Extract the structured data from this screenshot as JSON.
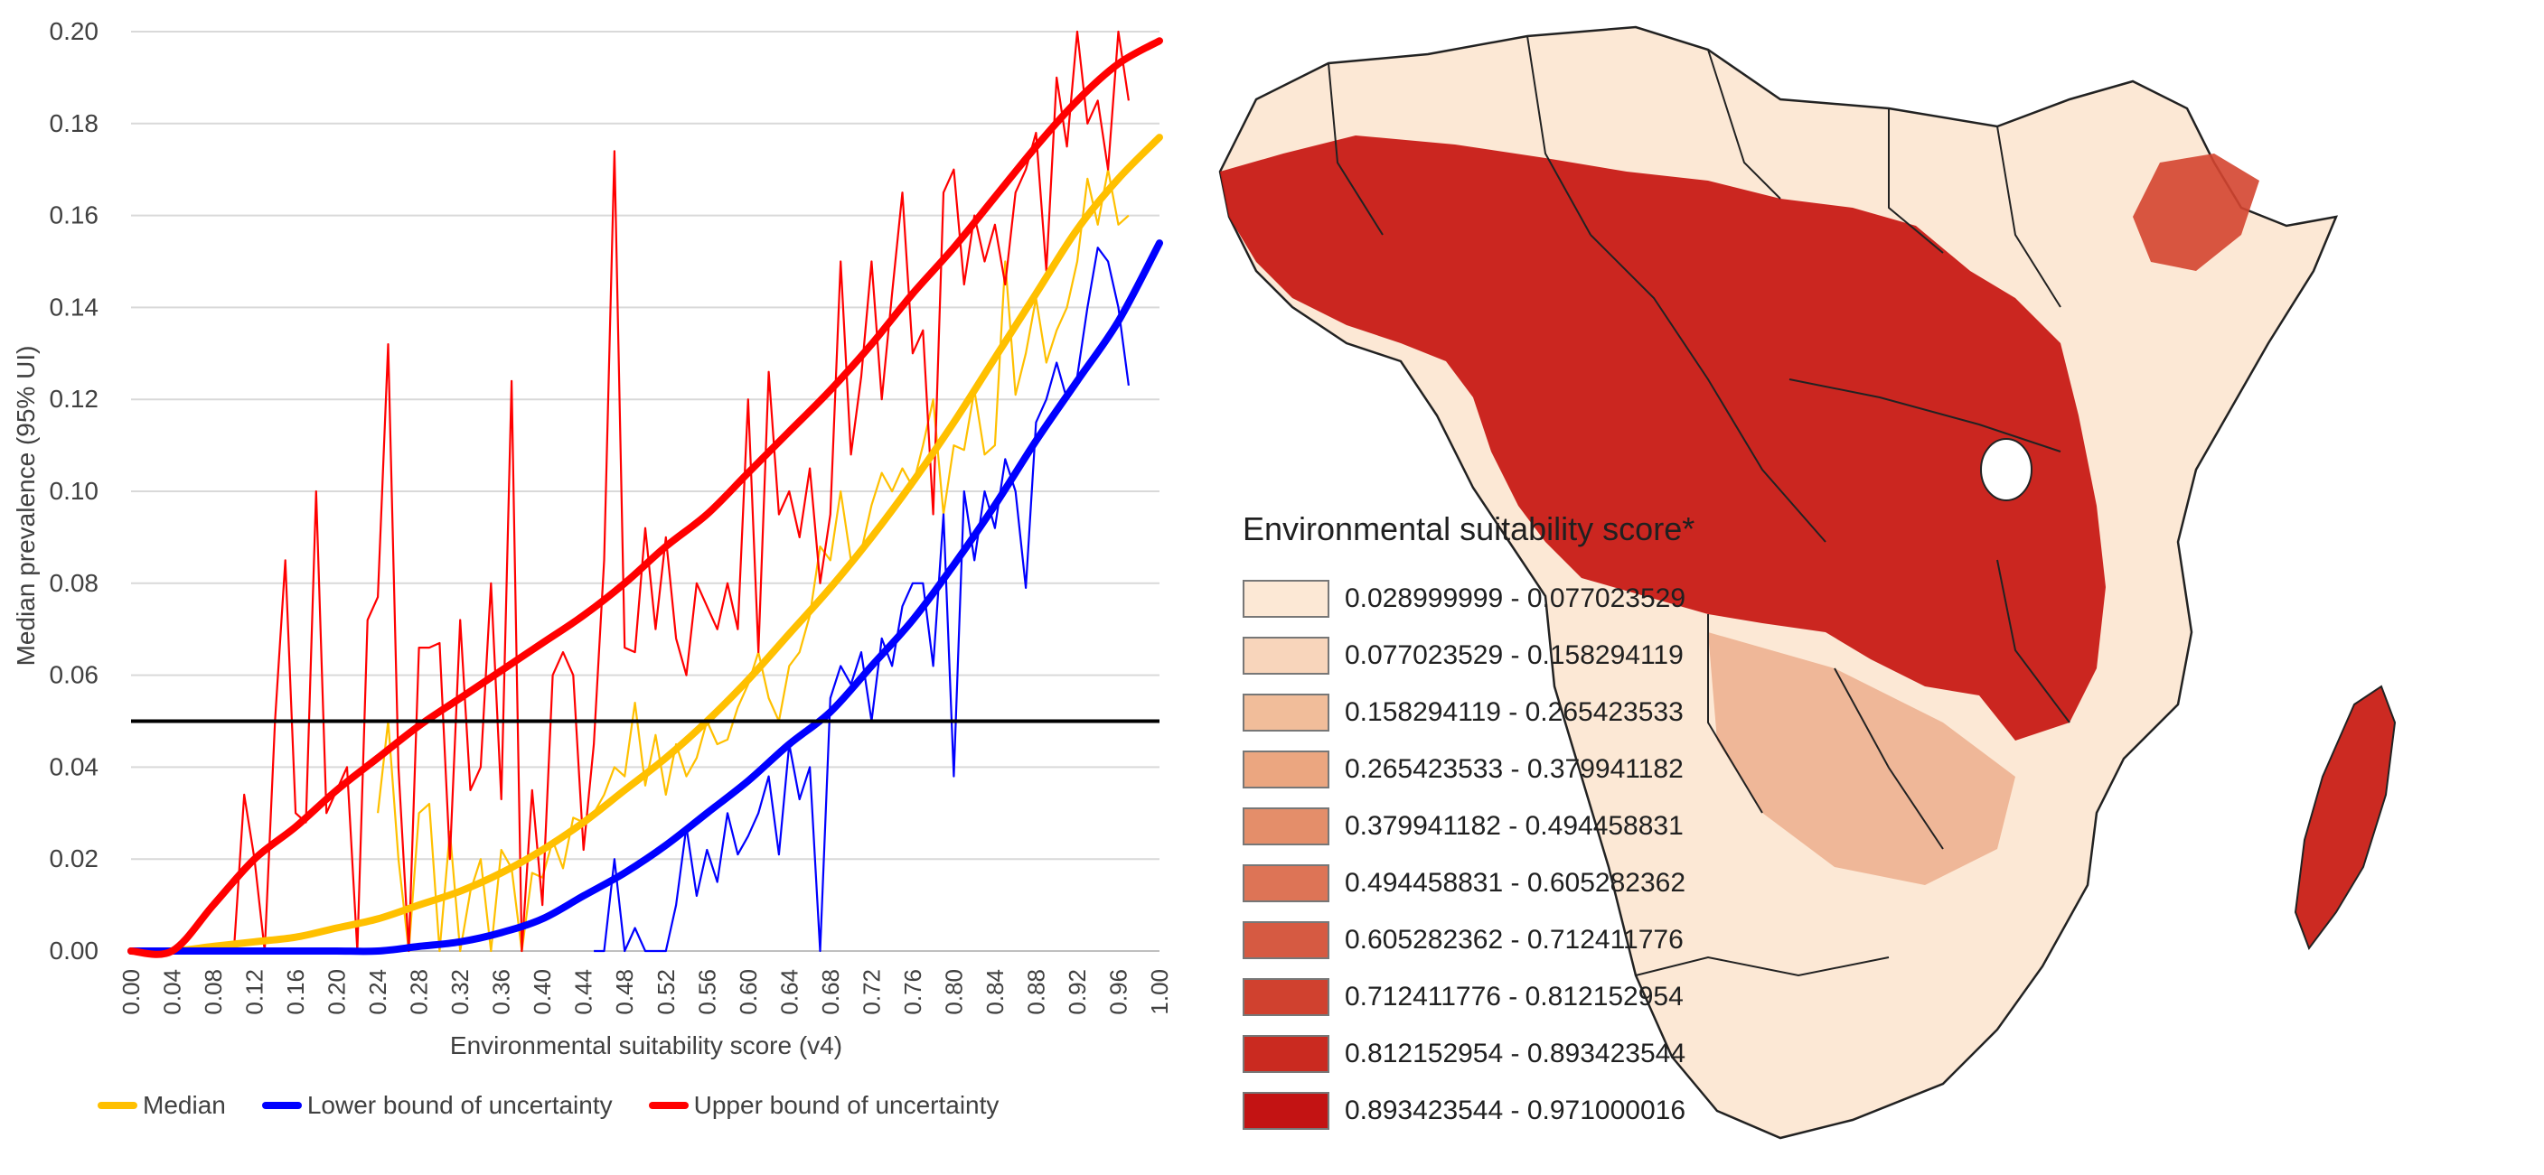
{
  "chart_data": {
    "type": "line",
    "xlabel": "Environmental suitability score (v4)",
    "ylabel": "Median prevalence (95% UI)",
    "xlim": [
      0,
      1
    ],
    "ylim": [
      0,
      0.2
    ],
    "x_ticks": [
      "0.00",
      "0.04",
      "0.08",
      "0.12",
      "0.16",
      "0.20",
      "0.24",
      "0.28",
      "0.32",
      "0.36",
      "0.40",
      "0.44",
      "0.48",
      "0.52",
      "0.56",
      "0.60",
      "0.64",
      "0.68",
      "0.72",
      "0.76",
      "0.80",
      "0.84",
      "0.88",
      "0.92",
      "0.96",
      "1.00"
    ],
    "y_ticks": [
      "0.00",
      "0.02",
      "0.04",
      "0.06",
      "0.08",
      "0.10",
      "0.12",
      "0.14",
      "0.16",
      "0.18",
      "0.20"
    ],
    "threshold": 0.05,
    "x": [
      0.0,
      0.04,
      0.08,
      0.12,
      0.16,
      0.2,
      0.24,
      0.28,
      0.32,
      0.36,
      0.4,
      0.44,
      0.48,
      0.52,
      0.56,
      0.6,
      0.64,
      0.68,
      0.72,
      0.76,
      0.8,
      0.84,
      0.88,
      0.92,
      0.96,
      1.0
    ],
    "series": [
      {
        "name": "Median",
        "color": "#FFC000",
        "smooth": true,
        "values": [
          0,
          0,
          0.001,
          0.002,
          0.003,
          0.005,
          0.007,
          0.01,
          0.013,
          0.017,
          0.022,
          0.028,
          0.035,
          0.042,
          0.05,
          0.059,
          0.069,
          0.079,
          0.09,
          0.102,
          0.115,
          0.129,
          0.143,
          0.157,
          0.168,
          0.177
        ]
      },
      {
        "name": "Lower bound of uncertainty",
        "color": "#0000FF",
        "smooth": true,
        "values": [
          0,
          0,
          0,
          0,
          0,
          0,
          0,
          0.001,
          0.002,
          0.004,
          0.007,
          0.012,
          0.017,
          0.023,
          0.03,
          0.037,
          0.045,
          0.052,
          0.062,
          0.072,
          0.084,
          0.097,
          0.111,
          0.124,
          0.137,
          0.154
        ]
      },
      {
        "name": "Upper bound of uncertainty",
        "color": "#FF0000",
        "smooth": true,
        "values": [
          0,
          0,
          0.01,
          0.02,
          0.027,
          0.035,
          0.042,
          0.049,
          0.055,
          0.061,
          0.067,
          0.073,
          0.08,
          0.088,
          0.095,
          0.104,
          0.113,
          0.122,
          0.132,
          0.143,
          0.153,
          0.164,
          0.175,
          0.185,
          0.193,
          0.198
        ]
      }
    ],
    "raw_series": [
      {
        "name": "Median (raw)",
        "color": "#FFC000",
        "x": [
          0.24,
          0.25,
          0.26,
          0.27,
          0.28,
          0.29,
          0.3,
          0.31,
          0.32,
          0.33,
          0.34,
          0.35,
          0.36,
          0.37,
          0.38,
          0.39,
          0.4,
          0.41,
          0.42,
          0.43,
          0.44,
          0.45,
          0.46,
          0.47,
          0.48,
          0.49,
          0.5,
          0.51,
          0.52,
          0.53,
          0.54,
          0.55,
          0.56,
          0.57,
          0.58,
          0.59,
          0.6,
          0.61,
          0.62,
          0.63,
          0.64,
          0.65,
          0.66,
          0.67,
          0.68,
          0.69,
          0.7,
          0.71,
          0.72,
          0.73,
          0.74,
          0.75,
          0.76,
          0.77,
          0.78,
          0.79,
          0.8,
          0.81,
          0.82,
          0.83,
          0.84,
          0.85,
          0.86,
          0.87,
          0.88,
          0.89,
          0.9,
          0.91,
          0.92,
          0.93,
          0.94,
          0.95,
          0.96,
          0.97
        ],
        "values": [
          0.03,
          0.05,
          0.02,
          0,
          0.03,
          0.032,
          0,
          0.026,
          0,
          0.013,
          0.02,
          0,
          0.022,
          0.018,
          0,
          0.017,
          0.016,
          0.024,
          0.018,
          0.029,
          0.028,
          0.03,
          0.034,
          0.04,
          0.038,
          0.054,
          0.036,
          0.047,
          0.034,
          0.045,
          0.038,
          0.042,
          0.05,
          0.045,
          0.046,
          0.053,
          0.058,
          0.065,
          0.055,
          0.05,
          0.062,
          0.065,
          0.073,
          0.088,
          0.085,
          0.1,
          0.085,
          0.087,
          0.097,
          0.104,
          0.1,
          0.105,
          0.101,
          0.11,
          0.12,
          0.095,
          0.11,
          0.109,
          0.122,
          0.108,
          0.11,
          0.15,
          0.121,
          0.13,
          0.142,
          0.128,
          0.135,
          0.14,
          0.15,
          0.168,
          0.158,
          0.17,
          0.158,
          0.16
        ]
      },
      {
        "name": "Lower bound (raw)",
        "color": "#0000FF",
        "x": [
          0.45,
          0.46,
          0.47,
          0.48,
          0.49,
          0.5,
          0.51,
          0.52,
          0.53,
          0.54,
          0.55,
          0.56,
          0.57,
          0.58,
          0.59,
          0.6,
          0.61,
          0.62,
          0.63,
          0.64,
          0.65,
          0.66,
          0.67,
          0.68,
          0.69,
          0.7,
          0.71,
          0.72,
          0.73,
          0.74,
          0.75,
          0.76,
          0.77,
          0.78,
          0.79,
          0.8,
          0.81,
          0.82,
          0.83,
          0.84,
          0.85,
          0.86,
          0.87,
          0.88,
          0.89,
          0.9,
          0.91,
          0.92,
          0.93,
          0.94,
          0.95,
          0.96,
          0.97
        ],
        "values": [
          0,
          0,
          0.02,
          0,
          0.005,
          0,
          0,
          0,
          0.01,
          0.027,
          0.012,
          0.022,
          0.015,
          0.03,
          0.021,
          0.025,
          0.03,
          0.038,
          0.021,
          0.045,
          0.033,
          0.04,
          0,
          0.055,
          0.062,
          0.058,
          0.065,
          0.05,
          0.068,
          0.062,
          0.075,
          0.08,
          0.08,
          0.062,
          0.095,
          0.038,
          0.1,
          0.085,
          0.1,
          0.092,
          0.107,
          0.1,
          0.079,
          0.115,
          0.12,
          0.128,
          0.12,
          0.125,
          0.14,
          0.153,
          0.15,
          0.14,
          0.123
        ]
      },
      {
        "name": "Upper bound (raw)",
        "color": "#FF0000",
        "x": [
          0.1,
          0.11,
          0.12,
          0.13,
          0.14,
          0.15,
          0.16,
          0.17,
          0.18,
          0.19,
          0.2,
          0.21,
          0.22,
          0.23,
          0.24,
          0.25,
          0.26,
          0.27,
          0.28,
          0.29,
          0.3,
          0.31,
          0.32,
          0.33,
          0.34,
          0.35,
          0.36,
          0.37,
          0.38,
          0.39,
          0.4,
          0.41,
          0.42,
          0.43,
          0.44,
          0.45,
          0.46,
          0.47,
          0.48,
          0.49,
          0.5,
          0.51,
          0.52,
          0.53,
          0.54,
          0.55,
          0.56,
          0.57,
          0.58,
          0.59,
          0.6,
          0.61,
          0.62,
          0.63,
          0.64,
          0.65,
          0.66,
          0.67,
          0.68,
          0.69,
          0.7,
          0.71,
          0.72,
          0.73,
          0.74,
          0.75,
          0.76,
          0.77,
          0.78,
          0.79,
          0.8,
          0.81,
          0.82,
          0.83,
          0.84,
          0.85,
          0.86,
          0.87,
          0.88,
          0.89,
          0.9,
          0.91,
          0.92,
          0.93,
          0.94,
          0.95,
          0.96,
          0.97
        ],
        "values": [
          0,
          0.034,
          0.02,
          0,
          0.05,
          0.085,
          0.03,
          0.028,
          0.1,
          0.03,
          0.035,
          0.04,
          0,
          0.072,
          0.077,
          0.132,
          0.04,
          0,
          0.066,
          0.066,
          0.067,
          0.02,
          0.072,
          0.035,
          0.04,
          0.08,
          0.033,
          0.124,
          0,
          0.035,
          0.01,
          0.06,
          0.065,
          0.06,
          0.022,
          0.045,
          0.085,
          0.174,
          0.066,
          0.065,
          0.092,
          0.07,
          0.09,
          0.068,
          0.06,
          0.08,
          0.075,
          0.07,
          0.08,
          0.07,
          0.12,
          0.065,
          0.126,
          0.095,
          0.1,
          0.09,
          0.105,
          0.08,
          0.095,
          0.15,
          0.108,
          0.125,
          0.15,
          0.12,
          0.143,
          0.165,
          0.13,
          0.135,
          0.095,
          0.165,
          0.17,
          0.145,
          0.16,
          0.15,
          0.158,
          0.145,
          0.165,
          0.17,
          0.178,
          0.148,
          0.19,
          0.175,
          0.2,
          0.18,
          0.185,
          0.17,
          0.2,
          0.185
        ]
      }
    ],
    "legend": [
      {
        "label": "Median",
        "color": "#FFC000"
      },
      {
        "label": "Lower bound of uncertainty",
        "color": "#0000FF"
      },
      {
        "label": "Upper bound of uncertainty",
        "color": "#FF0000"
      }
    ]
  },
  "map": {
    "legend_title": "Environmental suitability score*",
    "legend": [
      {
        "label": "0.028999999 - 0.077023529",
        "color": "#FCE8D5"
      },
      {
        "label": "0.077023529 - 0.158294119",
        "color": "#F8D5BB"
      },
      {
        "label": "0.158294119 - 0.265423533",
        "color": "#F1BD9A"
      },
      {
        "label": "0.265423533 - 0.379941182",
        "color": "#EBA680"
      },
      {
        "label": "0.379941182 - 0.494458831",
        "color": "#E48E6A"
      },
      {
        "label": "0.494458831 - 0.605282362",
        "color": "#DD7456"
      },
      {
        "label": "0.605282362 - 0.712411776",
        "color": "#D65A42"
      },
      {
        "label": "0.712411776 - 0.812152954",
        "color": "#D0412F"
      },
      {
        "label": "0.812152954 - 0.893423544",
        "color": "#CA2A20"
      },
      {
        "label": "0.893423544 - 0.971000016",
        "color": "#C31313"
      }
    ]
  }
}
